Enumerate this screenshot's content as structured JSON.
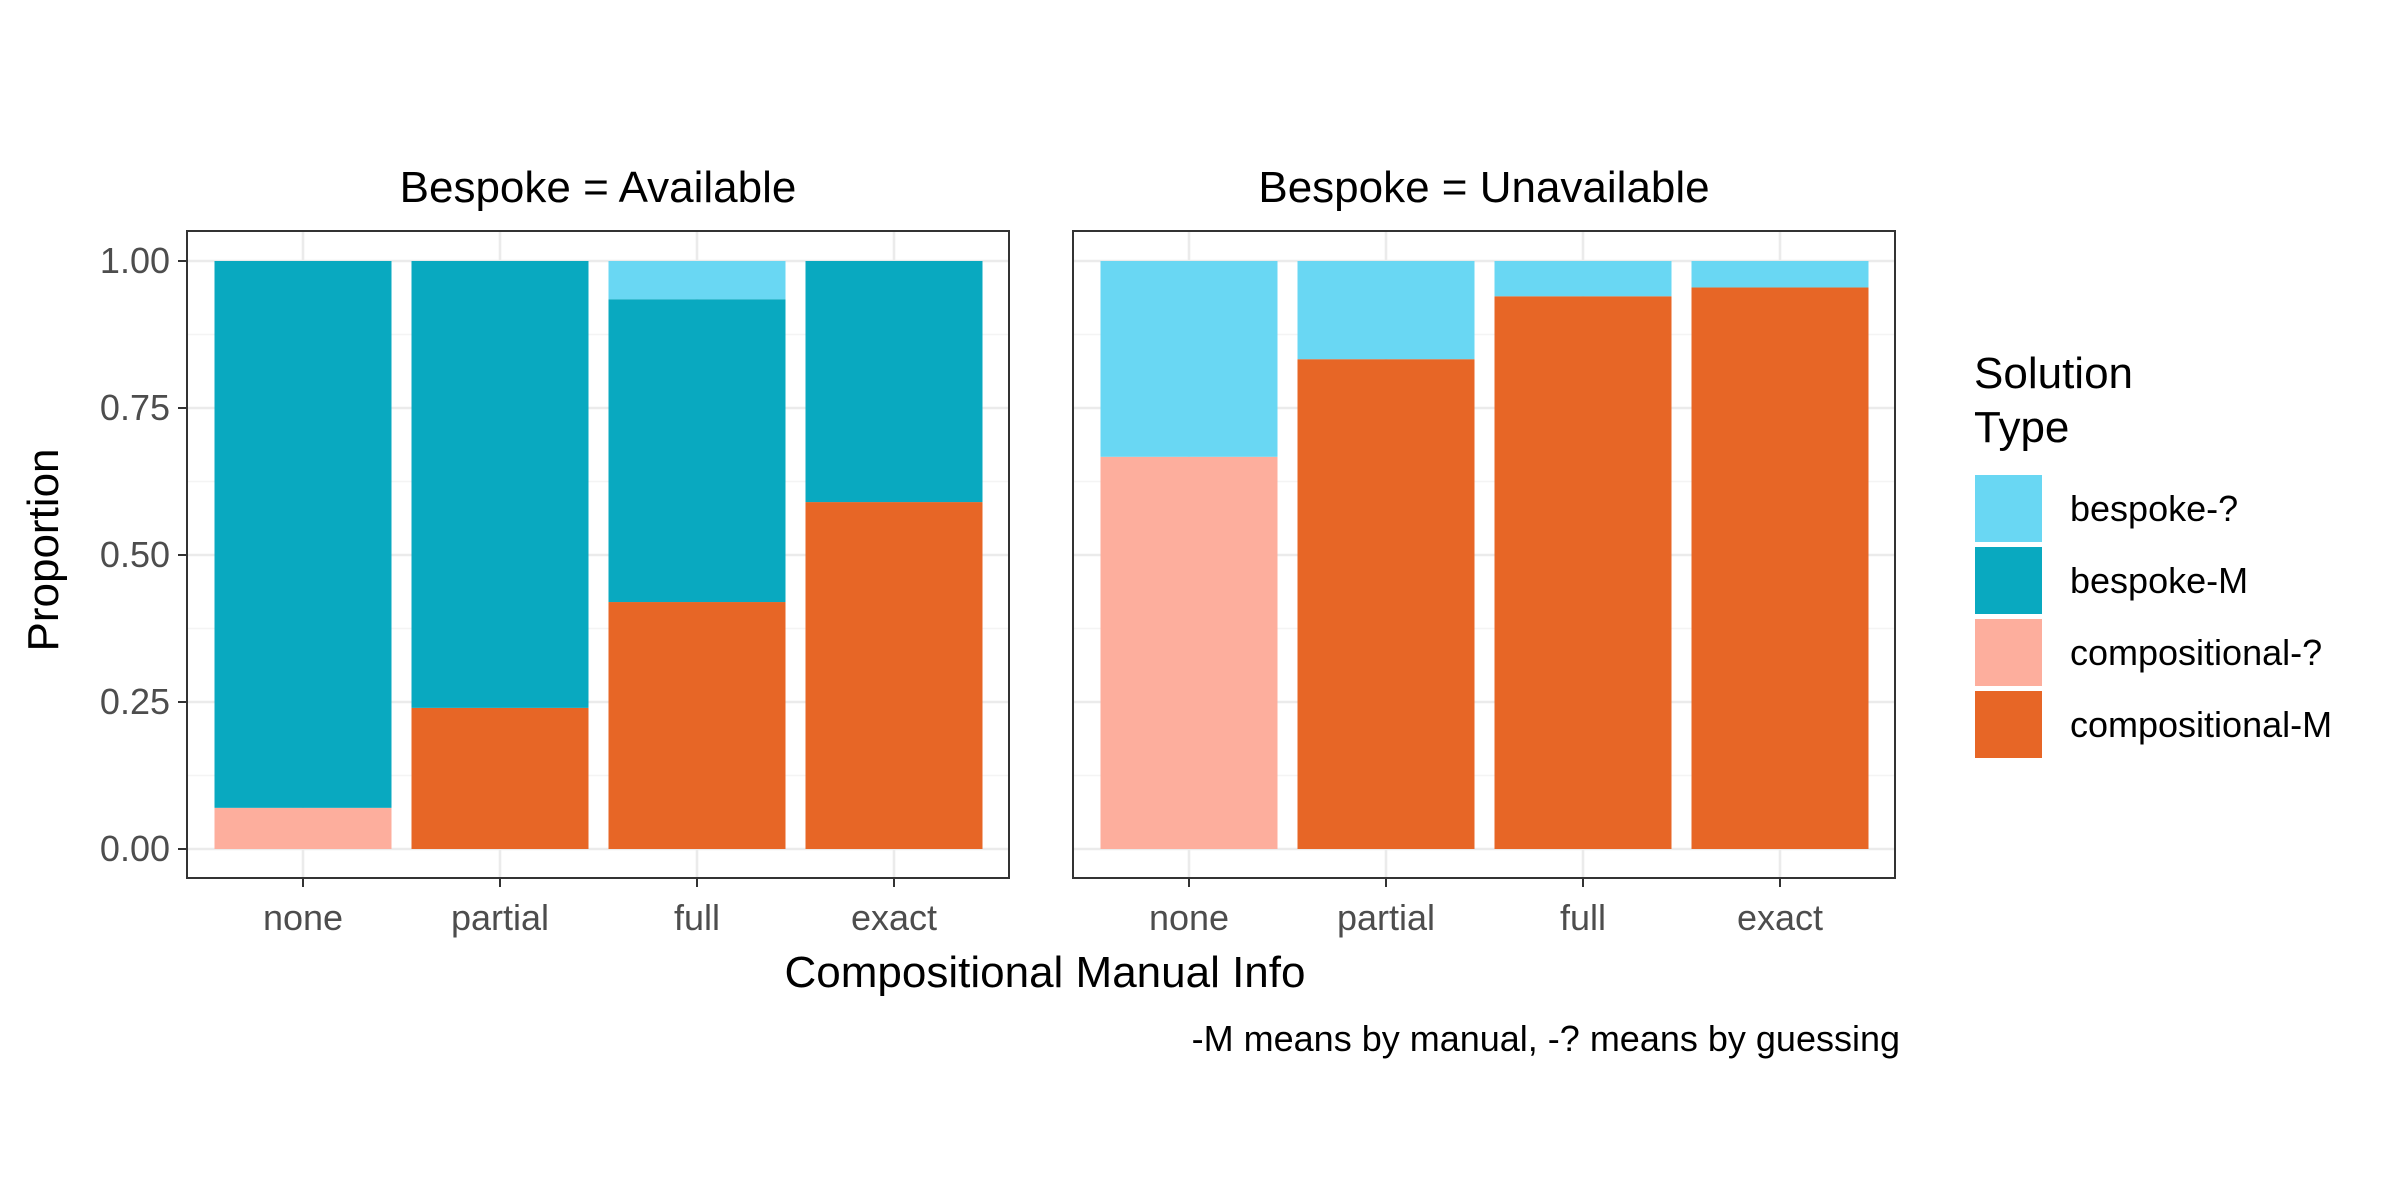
{
  "chart_data": {
    "type": "bar",
    "stacked": true,
    "normalized": true,
    "xlabel": "Compositional Manual Info",
    "ylabel": "Proportion",
    "caption": "-M means by manual, -? means by guessing",
    "ylim": [
      0,
      1
    ],
    "yticks": [
      "0.00",
      "0.25",
      "0.50",
      "0.75",
      "1.00"
    ],
    "ytick_values": [
      0,
      0.25,
      0.5,
      0.75,
      1.0
    ],
    "categories": [
      "none",
      "partial",
      "full",
      "exact"
    ],
    "grid": true,
    "legend": {
      "title_lines": [
        "Solution",
        "Type"
      ],
      "placement": "right",
      "entries": [
        {
          "name": "bespoke-?",
          "color": "#69d7f3"
        },
        {
          "name": "bespoke-M",
          "color": "#09a9c0"
        },
        {
          "name": "compositional-?",
          "color": "#fdae9d"
        },
        {
          "name": "compositional-M",
          "color": "#e76626"
        }
      ]
    },
    "panels": [
      {
        "title": "Bespoke = Available",
        "series": [
          {
            "name": "compositional-M",
            "color": "#e76626",
            "values": [
              0.0,
              0.24,
              0.42,
              0.59
            ]
          },
          {
            "name": "compositional-?",
            "color": "#fdae9d",
            "values": [
              0.07,
              0.0,
              0.0,
              0.0
            ]
          },
          {
            "name": "bespoke-M",
            "color": "#09a9c0",
            "values": [
              0.93,
              0.76,
              0.515,
              0.41
            ]
          },
          {
            "name": "bespoke-?",
            "color": "#69d7f3",
            "values": [
              0.0,
              0.0,
              0.065,
              0.0
            ]
          }
        ]
      },
      {
        "title": "Bespoke = Unavailable",
        "series": [
          {
            "name": "compositional-M",
            "color": "#e76626",
            "values": [
              0.0,
              0.833,
              0.94,
              0.955
            ]
          },
          {
            "name": "compositional-?",
            "color": "#fdae9d",
            "values": [
              0.667,
              0.0,
              0.0,
              0.0
            ]
          },
          {
            "name": "bespoke-M",
            "color": "#09a9c0",
            "values": [
              0.0,
              0.0,
              0.0,
              0.0
            ]
          },
          {
            "name": "bespoke-?",
            "color": "#69d7f3",
            "values": [
              0.333,
              0.167,
              0.06,
              0.045
            ]
          }
        ]
      }
    ]
  }
}
